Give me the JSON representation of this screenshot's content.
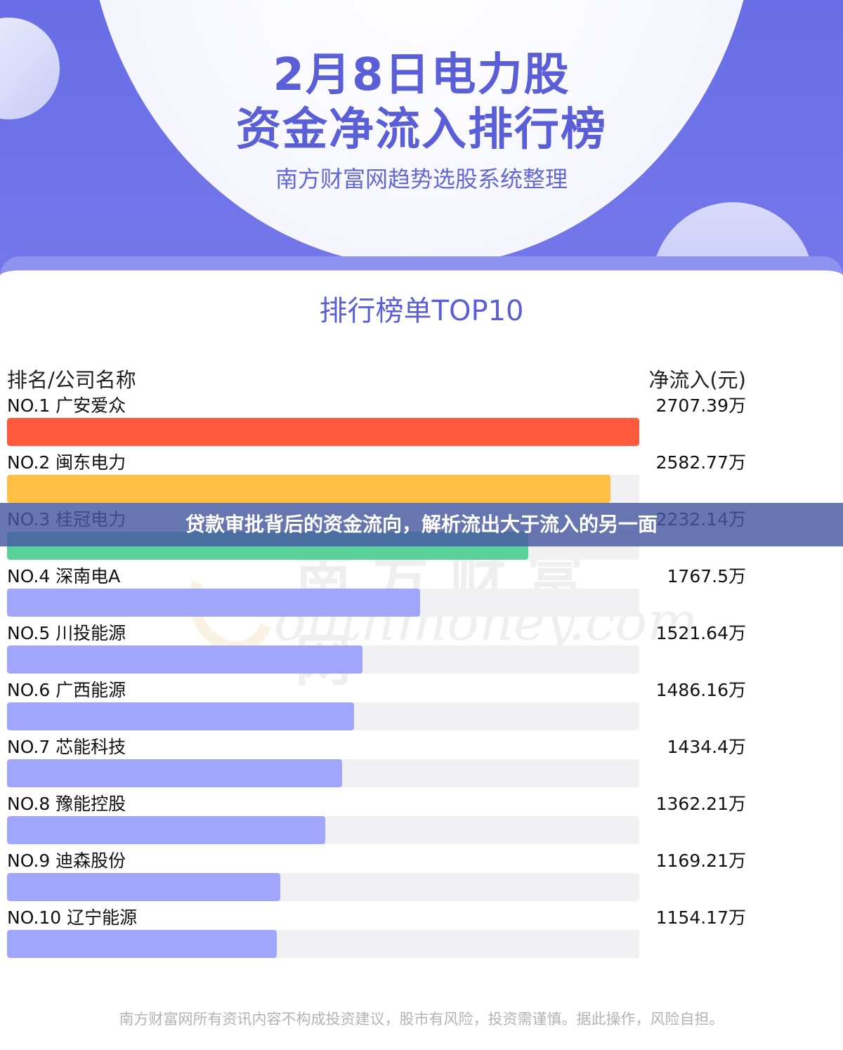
{
  "header": {
    "title_line1": "2月8日电力股",
    "title_line2": "资金净流入排行榜",
    "subtitle": "南方财富网趋势选股系统整理"
  },
  "card": {
    "title": "排行榜单TOP10",
    "col_left": "排名/公司名称",
    "col_right": "净流入(元)"
  },
  "watermark": {
    "cn": "南方财富网",
    "en": "outhmoney.com"
  },
  "banner": {
    "text": "贷款审批背后的资金流向，解析流出大于流入的另一面"
  },
  "footer": {
    "text": "南方财富网所有资讯内容不构成投资建议，股市有风险，投资需谨慎。据此操作，风险自担。"
  },
  "colors": {
    "rank1": "#ff5a3d",
    "rank2": "#ffc145",
    "rank3": "#5bd19a",
    "rank_other": "#a2a6fb",
    "accent": "#5a5fd8"
  },
  "chart_data": {
    "type": "bar",
    "orientation": "horizontal",
    "title": "排行榜单TOP10",
    "xlabel": "",
    "ylabel": "",
    "unit": "万",
    "categories": [
      "NO.1 广安爱众",
      "NO.2 闽东电力",
      "NO.3 桂冠电力",
      "NO.4 深南电A",
      "NO.5 川投能源",
      "NO.6 广西能源",
      "NO.7 芯能科技",
      "NO.8 豫能控股",
      "NO.9 迪森股份",
      "NO.10 辽宁能源"
    ],
    "values": [
      2707.39,
      2582.77,
      2232.14,
      1767.5,
      1521.64,
      1486.16,
      1434.4,
      1362.21,
      1169.21,
      1154.17
    ],
    "value_labels": [
      "2707.39万",
      "2582.77万",
      "2232.14万",
      "1767.5万",
      "1521.64万",
      "1486.16万",
      "1434.4万",
      "1362.21万",
      "1169.21万",
      "1154.17万"
    ],
    "xlim": [
      0,
      2707.39
    ]
  }
}
